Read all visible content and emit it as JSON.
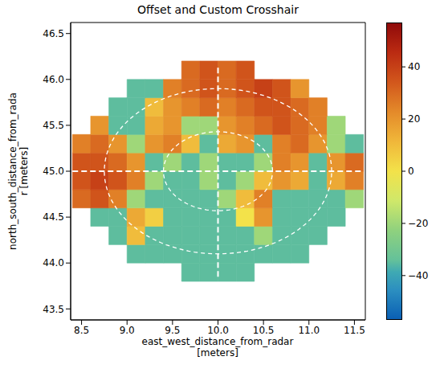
{
  "chart_data": {
    "type": "heatmap",
    "title": "Offset and Custom Crosshair",
    "x_label": "east_west_distance_from_radar [meters]",
    "y_label": "north_south_distance_from_radar [meters]",
    "xlim": [
      8.38,
      11.62
    ],
    "ylim": [
      43.38,
      46.62
    ],
    "xticks": [
      {
        "value": 8.5,
        "label": "8.5"
      },
      {
        "value": 9,
        "label": "9.0"
      },
      {
        "value": 9.5,
        "label": "9.5"
      },
      {
        "value": 10,
        "label": "10.0"
      },
      {
        "value": 10.5,
        "label": "10.5"
      },
      {
        "value": 11,
        "label": "11.0"
      },
      {
        "value": 11.5,
        "label": "11.5"
      }
    ],
    "yticks": [
      {
        "value": 43.5,
        "label": "43.5"
      },
      {
        "value": 44,
        "label": "44.0"
      },
      {
        "value": 44.5,
        "label": "44.5"
      },
      {
        "value": 45,
        "label": "45.0"
      },
      {
        "value": 45.5,
        "label": "45.5"
      },
      {
        "value": 46,
        "label": "46.0"
      },
      {
        "value": 46.5,
        "label": "46.5"
      }
    ],
    "cells": {
      "x_edges": [
        8.4,
        8.6,
        8.8,
        9.0,
        9.2,
        9.4,
        9.6,
        9.8,
        10.0,
        10.2,
        10.4,
        10.6,
        10.8,
        11.0,
        11.2,
        11.4,
        11.6
      ],
      "y_edges": [
        43.8,
        44.0,
        44.2,
        44.4,
        44.6,
        44.8,
        45.0,
        45.2,
        45.4,
        45.6,
        45.8,
        46.0,
        46.2
      ],
      "values": [
        [
          null,
          null,
          null,
          null,
          null,
          null,
          -35,
          -35,
          -35,
          -35,
          null,
          null,
          null,
          null,
          null,
          null
        ],
        [
          null,
          null,
          null,
          -35,
          -35,
          -35,
          -35,
          -35,
          -35,
          -35,
          -35,
          -35,
          -35,
          null,
          null,
          null
        ],
        [
          null,
          null,
          -35,
          10,
          -35,
          -35,
          -35,
          -35,
          -35,
          -35,
          -20,
          -35,
          -35,
          -35,
          null,
          null
        ],
        [
          null,
          -35,
          -35,
          15,
          5,
          -35,
          -35,
          -35,
          -35,
          0,
          20,
          -35,
          -35,
          -35,
          -35,
          null
        ],
        [
          30,
          35,
          25,
          -20,
          -35,
          -35,
          -35,
          -35,
          -20,
          10,
          25,
          -35,
          -35,
          -35,
          -35,
          -20
        ],
        [
          35,
          40,
          35,
          25,
          -20,
          -35,
          -35,
          -20,
          -35,
          -20,
          10,
          20,
          15,
          -35,
          15,
          25
        ],
        [
          35,
          35,
          30,
          20,
          -35,
          -20,
          -35,
          -20,
          -35,
          -35,
          -20,
          25,
          20,
          -35,
          20,
          30
        ],
        [
          25,
          30,
          20,
          -20,
          20,
          25,
          10,
          -35,
          15,
          20,
          -35,
          25,
          30,
          20,
          -20,
          -35
        ],
        [
          null,
          20,
          -35,
          -35,
          15,
          20,
          -20,
          -20,
          20,
          25,
          30,
          35,
          30,
          25,
          -20,
          null
        ],
        [
          null,
          null,
          -35,
          -35,
          10,
          20,
          25,
          30,
          25,
          30,
          35,
          35,
          30,
          25,
          null,
          null
        ],
        [
          null,
          null,
          null,
          -35,
          -35,
          25,
          30,
          35,
          30,
          35,
          40,
          35,
          20,
          null,
          null,
          null
        ],
        [
          null,
          null,
          null,
          null,
          null,
          null,
          30,
          35,
          30,
          35,
          null,
          null,
          null,
          null,
          null,
          null
        ]
      ]
    },
    "colorbar": {
      "range": [
        -57,
        57
      ],
      "ticks": [
        {
          "value": -40,
          "label": "−40"
        },
        {
          "value": -20,
          "label": "−20"
        },
        {
          "value": 0,
          "label": "0"
        },
        {
          "value": 20,
          "label": "20"
        },
        {
          "value": 40,
          "label": "40"
        }
      ]
    },
    "rings": [
      {
        "x_radius": 0.6,
        "y_radius": 0.43
      },
      {
        "x_radius": 1.25,
        "y_radius": 0.9
      }
    ],
    "crosshair": {
      "x": 10,
      "y": 45,
      "x_extent": [
        8.4,
        11.6
      ],
      "y_extent": [
        43.85,
        46.15
      ]
    }
  }
}
